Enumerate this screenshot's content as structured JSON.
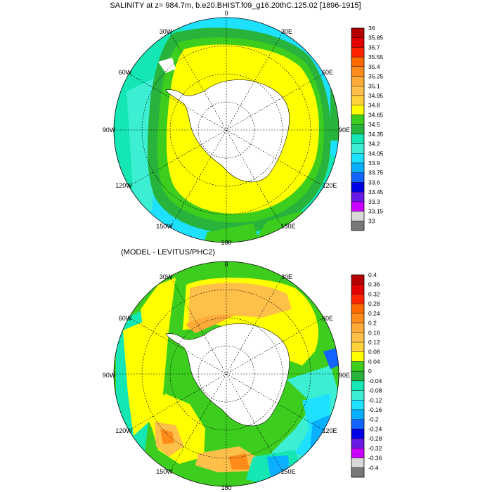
{
  "panels": [
    {
      "id": "salinity",
      "title": "SALINITY at z= 984.7m, b.e20.BHIST.f09_g16.20thC.125.02 [1896-1915]",
      "field": "absolute",
      "lon_labels": [
        "0",
        "30E",
        "60E",
        "90E",
        "120E",
        "150E",
        "180",
        "150W",
        "120W",
        "90W",
        "60W",
        "30W"
      ],
      "colorbar": {
        "labels": [
          "36",
          "35.85",
          "35.7",
          "35.55",
          "35.4",
          "35.25",
          "35.1",
          "34.95",
          "34.8",
          "34.65",
          "34.5",
          "34.35",
          "34.2",
          "34.05",
          "33.9",
          "33.75",
          "33.6",
          "33.45",
          "33.3",
          "33.15",
          "33"
        ],
        "colors": [
          "#b40000",
          "#e00000",
          "#ff2400",
          "#ff6a00",
          "#ff8c1a",
          "#ffab3a",
          "#ffc04a",
          "#ffd23a",
          "#ffff00",
          "#3ccd1e",
          "#28b43c",
          "#14e6b4",
          "#3ceed2",
          "#1ee1ff",
          "#0aafff",
          "#1464ff",
          "#0000e6",
          "#6a1ae6",
          "#c800ff",
          "#d8d8d8",
          "#787878"
        ]
      }
    },
    {
      "id": "difference",
      "title": "(MODEL - LEVITUS/PHC2)",
      "field": "difference",
      "lon_labels": [
        "0",
        "30E",
        "60E",
        "90E",
        "120E",
        "150E",
        "180",
        "150W",
        "120W",
        "90W",
        "60W",
        "30W"
      ],
      "colorbar": {
        "labels": [
          "0.4",
          "0.36",
          "0.32",
          "0.28",
          "0.24",
          "0.2",
          "0.16",
          "0.12",
          "0.08",
          "0.04",
          "0",
          "-0.04",
          "-0.08",
          "-0.12",
          "-0.16",
          "-0.2",
          "-0.24",
          "-0.28",
          "-0.32",
          "-0.36",
          "-0.4"
        ],
        "colors": [
          "#b40000",
          "#e00000",
          "#ff2400",
          "#ff6a00",
          "#ff8c1a",
          "#ffab3a",
          "#ffc04a",
          "#ffd23a",
          "#ffff00",
          "#3ccd1e",
          "#28b43c",
          "#14e6b4",
          "#3ceed2",
          "#1ee1ff",
          "#0aafff",
          "#1464ff",
          "#0000e6",
          "#6a1ae6",
          "#c800ff",
          "#d8d8d8",
          "#787878"
        ]
      }
    }
  ]
}
